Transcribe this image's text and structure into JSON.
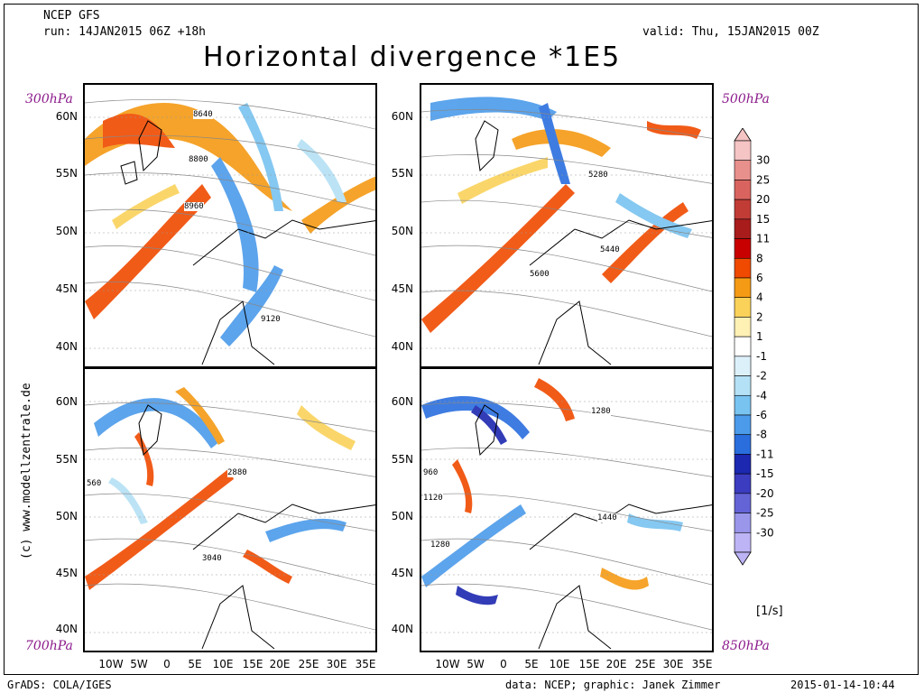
{
  "header": {
    "model": "NCEP GFS",
    "run": "run: 14JAN2015 06Z +18h",
    "valid": "valid: Thu, 15JAN2015 00Z",
    "title": "Horizontal divergence *1E5"
  },
  "panels": [
    {
      "id": "tl",
      "level": "300hPa",
      "contour_labels": [
        "8640",
        "8800",
        "8960",
        "9120"
      ]
    },
    {
      "id": "tr",
      "level": "500hPa",
      "contour_labels": [
        "5280",
        "5440",
        "5600"
      ]
    },
    {
      "id": "bl",
      "level": "700hPa",
      "contour_labels": [
        "2880",
        "3040",
        "560"
      ]
    },
    {
      "id": "br",
      "level": "850hPa",
      "contour_labels": [
        "1280",
        "1440",
        "960",
        "1120",
        "1280"
      ]
    }
  ],
  "lat_ticks_top": [
    "60N",
    "55N",
    "50N",
    "45N",
    "40N"
  ],
  "lat_ticks_bottom": [
    "60N",
    "55N",
    "50N",
    "45N",
    "40N"
  ],
  "lon_ticks": [
    "10W",
    "5W",
    "0",
    "5E",
    "10E",
    "15E",
    "20E",
    "25E",
    "30E",
    "35E"
  ],
  "colorbar": {
    "levels": [
      "30",
      "25",
      "20",
      "15",
      "11",
      "8",
      "6",
      "4",
      "2",
      "1",
      "-1",
      "-2",
      "-4",
      "-6",
      "-8",
      "-11",
      "-15",
      "-20",
      "-25",
      "-30"
    ],
    "colors": [
      "#f5c4c4",
      "#e8908c",
      "#d9645f",
      "#c23c36",
      "#a81c1c",
      "#c80000",
      "#f04a00",
      "#f59a14",
      "#fad25a",
      "#fff0b4",
      "#ffffff",
      "#dcf0fa",
      "#b4e1f5",
      "#78c3f0",
      "#4b9bea",
      "#2a6ede",
      "#1c28b0",
      "#3c3cc0",
      "#6464d7",
      "#9a96ea",
      "#bcb4f5"
    ],
    "unit": "[1/s]"
  },
  "credit_vertical": "(c) www.modellzentrale.de",
  "footer": {
    "left": "GrADS: COLA/IGES",
    "center": "data: NCEP; graphic: Janek Zimmer",
    "right": "2015-01-14-10:44"
  }
}
